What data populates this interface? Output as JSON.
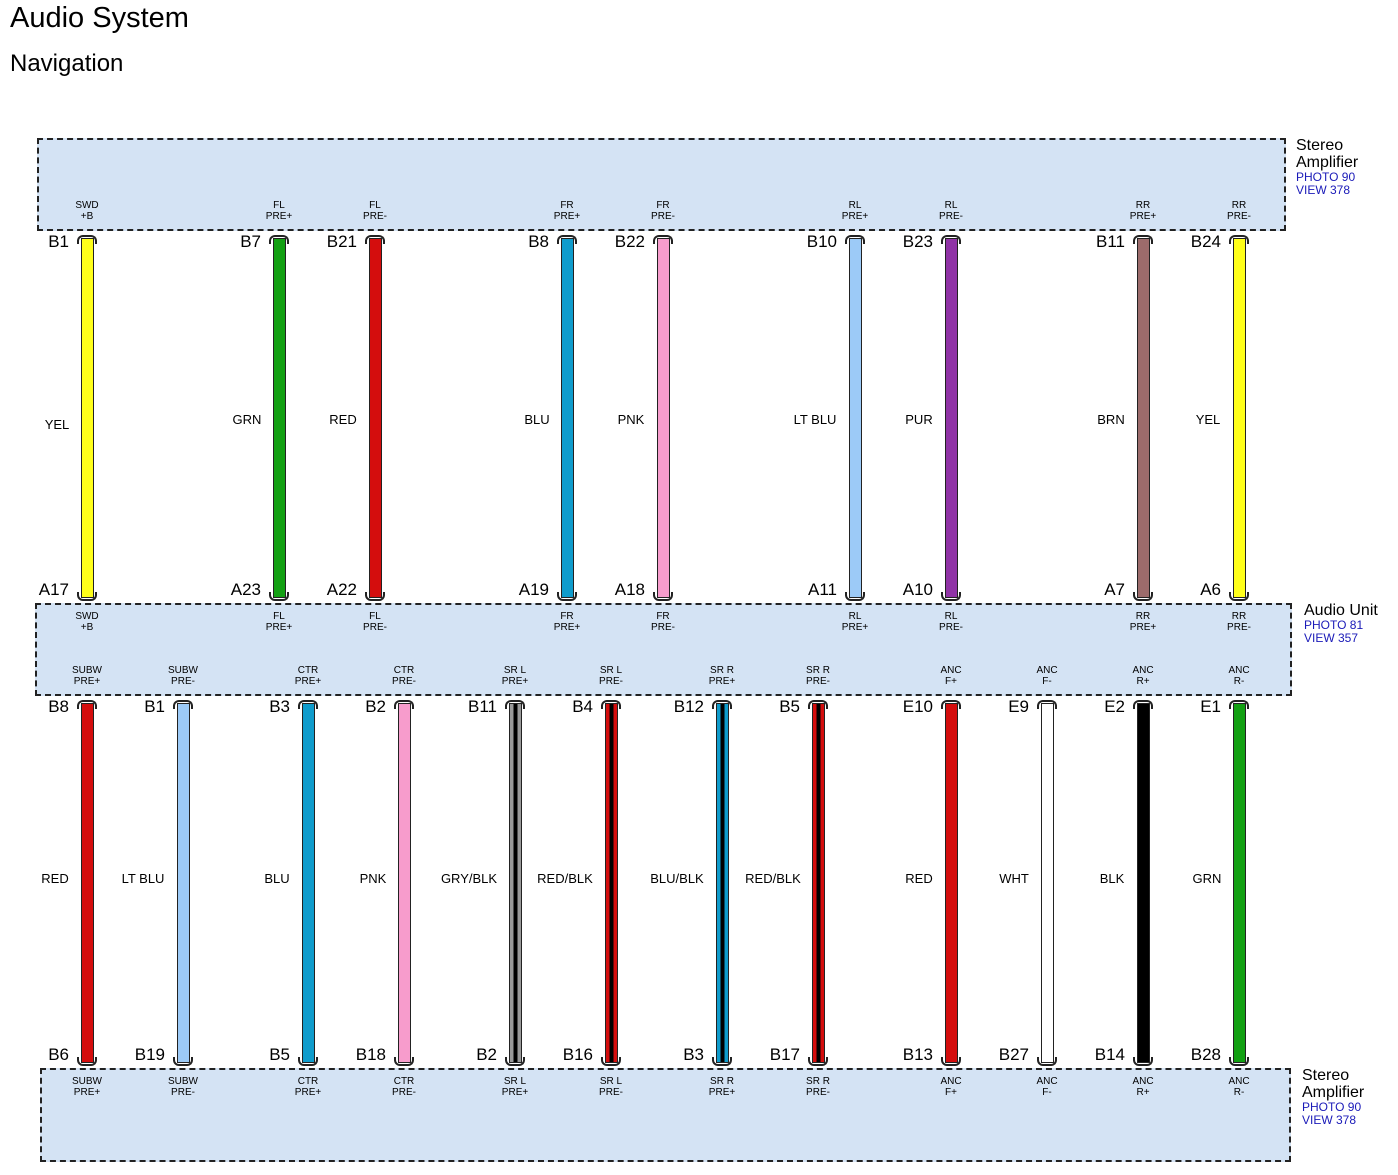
{
  "header": {
    "title": "Audio System",
    "subtitle": "Navigation"
  },
  "components": {
    "amp_top": {
      "name_line1": "Stereo",
      "name_line2": "Amplifier",
      "ref1": "PHOTO 90",
      "ref2": "VIEW 378"
    },
    "audio_unit": {
      "name": "Audio Unit",
      "ref1": "PHOTO 81",
      "ref2": "VIEW 357"
    },
    "amp_bottom": {
      "name_line1": "Stereo",
      "name_line2": "Amplifier",
      "ref1": "PHOTO 90",
      "ref2": "VIEW 378"
    }
  },
  "upper_wires": [
    {
      "from_pin": "B1",
      "to_pin": "A17",
      "signal_l1": "SWD",
      "signal_l2": "+B",
      "color": "YEL",
      "hex": "#ffff1a",
      "stripe": ""
    },
    {
      "from_pin": "B7",
      "to_pin": "A23",
      "signal_l1": "FL",
      "signal_l2": "PRE+",
      "color": "GRN",
      "hex": "#12a012",
      "stripe": ""
    },
    {
      "from_pin": "B21",
      "to_pin": "A22",
      "signal_l1": "FL",
      "signal_l2": "PRE-",
      "color": "RED",
      "hex": "#d40d0d",
      "stripe": ""
    },
    {
      "from_pin": "B8",
      "to_pin": "A19",
      "signal_l1": "FR",
      "signal_l2": "PRE+",
      "color": "BLU",
      "hex": "#0f9ccc",
      "stripe": ""
    },
    {
      "from_pin": "B22",
      "to_pin": "A18",
      "signal_l1": "FR",
      "signal_l2": "PRE-",
      "color": "PNK",
      "hex": "#f79ccc",
      "stripe": ""
    },
    {
      "from_pin": "B10",
      "to_pin": "A11",
      "signal_l1": "RL",
      "signal_l2": "PRE+",
      "color": "LT BLU",
      "hex": "#9ccaf7",
      "stripe": ""
    },
    {
      "from_pin": "B23",
      "to_pin": "A10",
      "signal_l1": "RL",
      "signal_l2": "PRE-",
      "color": "PUR",
      "hex": "#9033a6",
      "stripe": ""
    },
    {
      "from_pin": "B11",
      "to_pin": "A7",
      "signal_l1": "RR",
      "signal_l2": "PRE+",
      "color": "BRN",
      "hex": "#9c6b6b",
      "stripe": ""
    },
    {
      "from_pin": "B24",
      "to_pin": "A6",
      "signal_l1": "RR",
      "signal_l2": "PRE-",
      "color": "YEL",
      "hex": "#ffff1a",
      "stripe": ""
    }
  ],
  "lower_wires": [
    {
      "from_pin": "B8",
      "to_pin": "B6",
      "signal_l1": "SUBW",
      "signal_l2": "PRE+",
      "color": "RED",
      "hex": "#d40d0d",
      "stripe": ""
    },
    {
      "from_pin": "B1",
      "to_pin": "B19",
      "signal_l1": "SUBW",
      "signal_l2": "PRE-",
      "color": "LT BLU",
      "hex": "#9ccaf7",
      "stripe": ""
    },
    {
      "from_pin": "B3",
      "to_pin": "B5",
      "signal_l1": "CTR",
      "signal_l2": "PRE+",
      "color": "BLU",
      "hex": "#0f9ccc",
      "stripe": ""
    },
    {
      "from_pin": "B2",
      "to_pin": "B18",
      "signal_l1": "CTR",
      "signal_l2": "PRE-",
      "color": "PNK",
      "hex": "#f79ccc",
      "stripe": ""
    },
    {
      "from_pin": "B11",
      "to_pin": "B2",
      "signal_l1": "SR L",
      "signal_l2": "PRE+",
      "color": "GRY/BLK",
      "hex": "#9a9a9a",
      "stripe": "#000000"
    },
    {
      "from_pin": "B4",
      "to_pin": "B16",
      "signal_l1": "SR L",
      "signal_l2": "PRE-",
      "color": "RED/BLK",
      "hex": "#d40d0d",
      "stripe": "#000000"
    },
    {
      "from_pin": "B12",
      "to_pin": "B3",
      "signal_l1": "SR R",
      "signal_l2": "PRE+",
      "color": "BLU/BLK",
      "hex": "#0f9ccc",
      "stripe": "#000000"
    },
    {
      "from_pin": "B5",
      "to_pin": "B17",
      "signal_l1": "SR R",
      "signal_l2": "PRE-",
      "color": "RED/BLK",
      "hex": "#d40d0d",
      "stripe": "#000000"
    },
    {
      "from_pin": "E10",
      "to_pin": "B13",
      "signal_l1": "ANC",
      "signal_l2": "F+",
      "color": "RED",
      "hex": "#d40d0d",
      "stripe": ""
    },
    {
      "from_pin": "E9",
      "to_pin": "B27",
      "signal_l1": "ANC",
      "signal_l2": "F-",
      "color": "WHT",
      "hex": "#ffffff",
      "stripe": ""
    },
    {
      "from_pin": "E2",
      "to_pin": "B14",
      "signal_l1": "ANC",
      "signal_l2": "R+",
      "color": "BLK",
      "hex": "#000000",
      "stripe": ""
    },
    {
      "from_pin": "E1",
      "to_pin": "B28",
      "signal_l1": "ANC",
      "signal_l2": "R-",
      "color": "GRN",
      "hex": "#12a012",
      "stripe": ""
    }
  ]
}
